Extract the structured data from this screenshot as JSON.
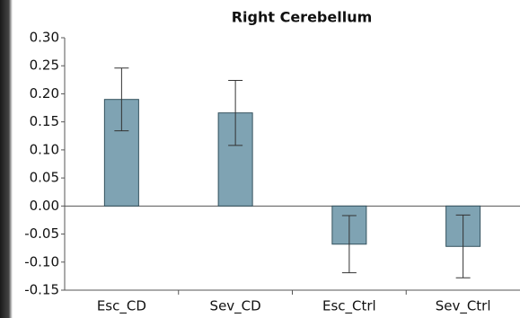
{
  "chart_data": {
    "type": "bar",
    "title": "Right Cerebellum",
    "categories": [
      "Esc_CD",
      "Sev_CD",
      "Esc_Ctrl",
      "Sev_Ctrl"
    ],
    "values": [
      0.19,
      0.166,
      -0.068,
      -0.072
    ],
    "errors": [
      0.056,
      0.058,
      0.051,
      0.056
    ],
    "color": "#7fa3b3",
    "ylim": [
      -0.15,
      0.3
    ],
    "yticks": [
      {
        "value": 0.3,
        "label": "0.30"
      },
      0.25,
      {
        "value": 0.2,
        "label": "0.20"
      },
      0.15,
      {
        "value": 0.1,
        "label": "0.10"
      },
      0.05,
      {
        "value": 0,
        "label": "0.00"
      },
      -0.05,
      {
        "value": -0.1,
        "label": "-0.10"
      },
      -0.15
    ]
  }
}
